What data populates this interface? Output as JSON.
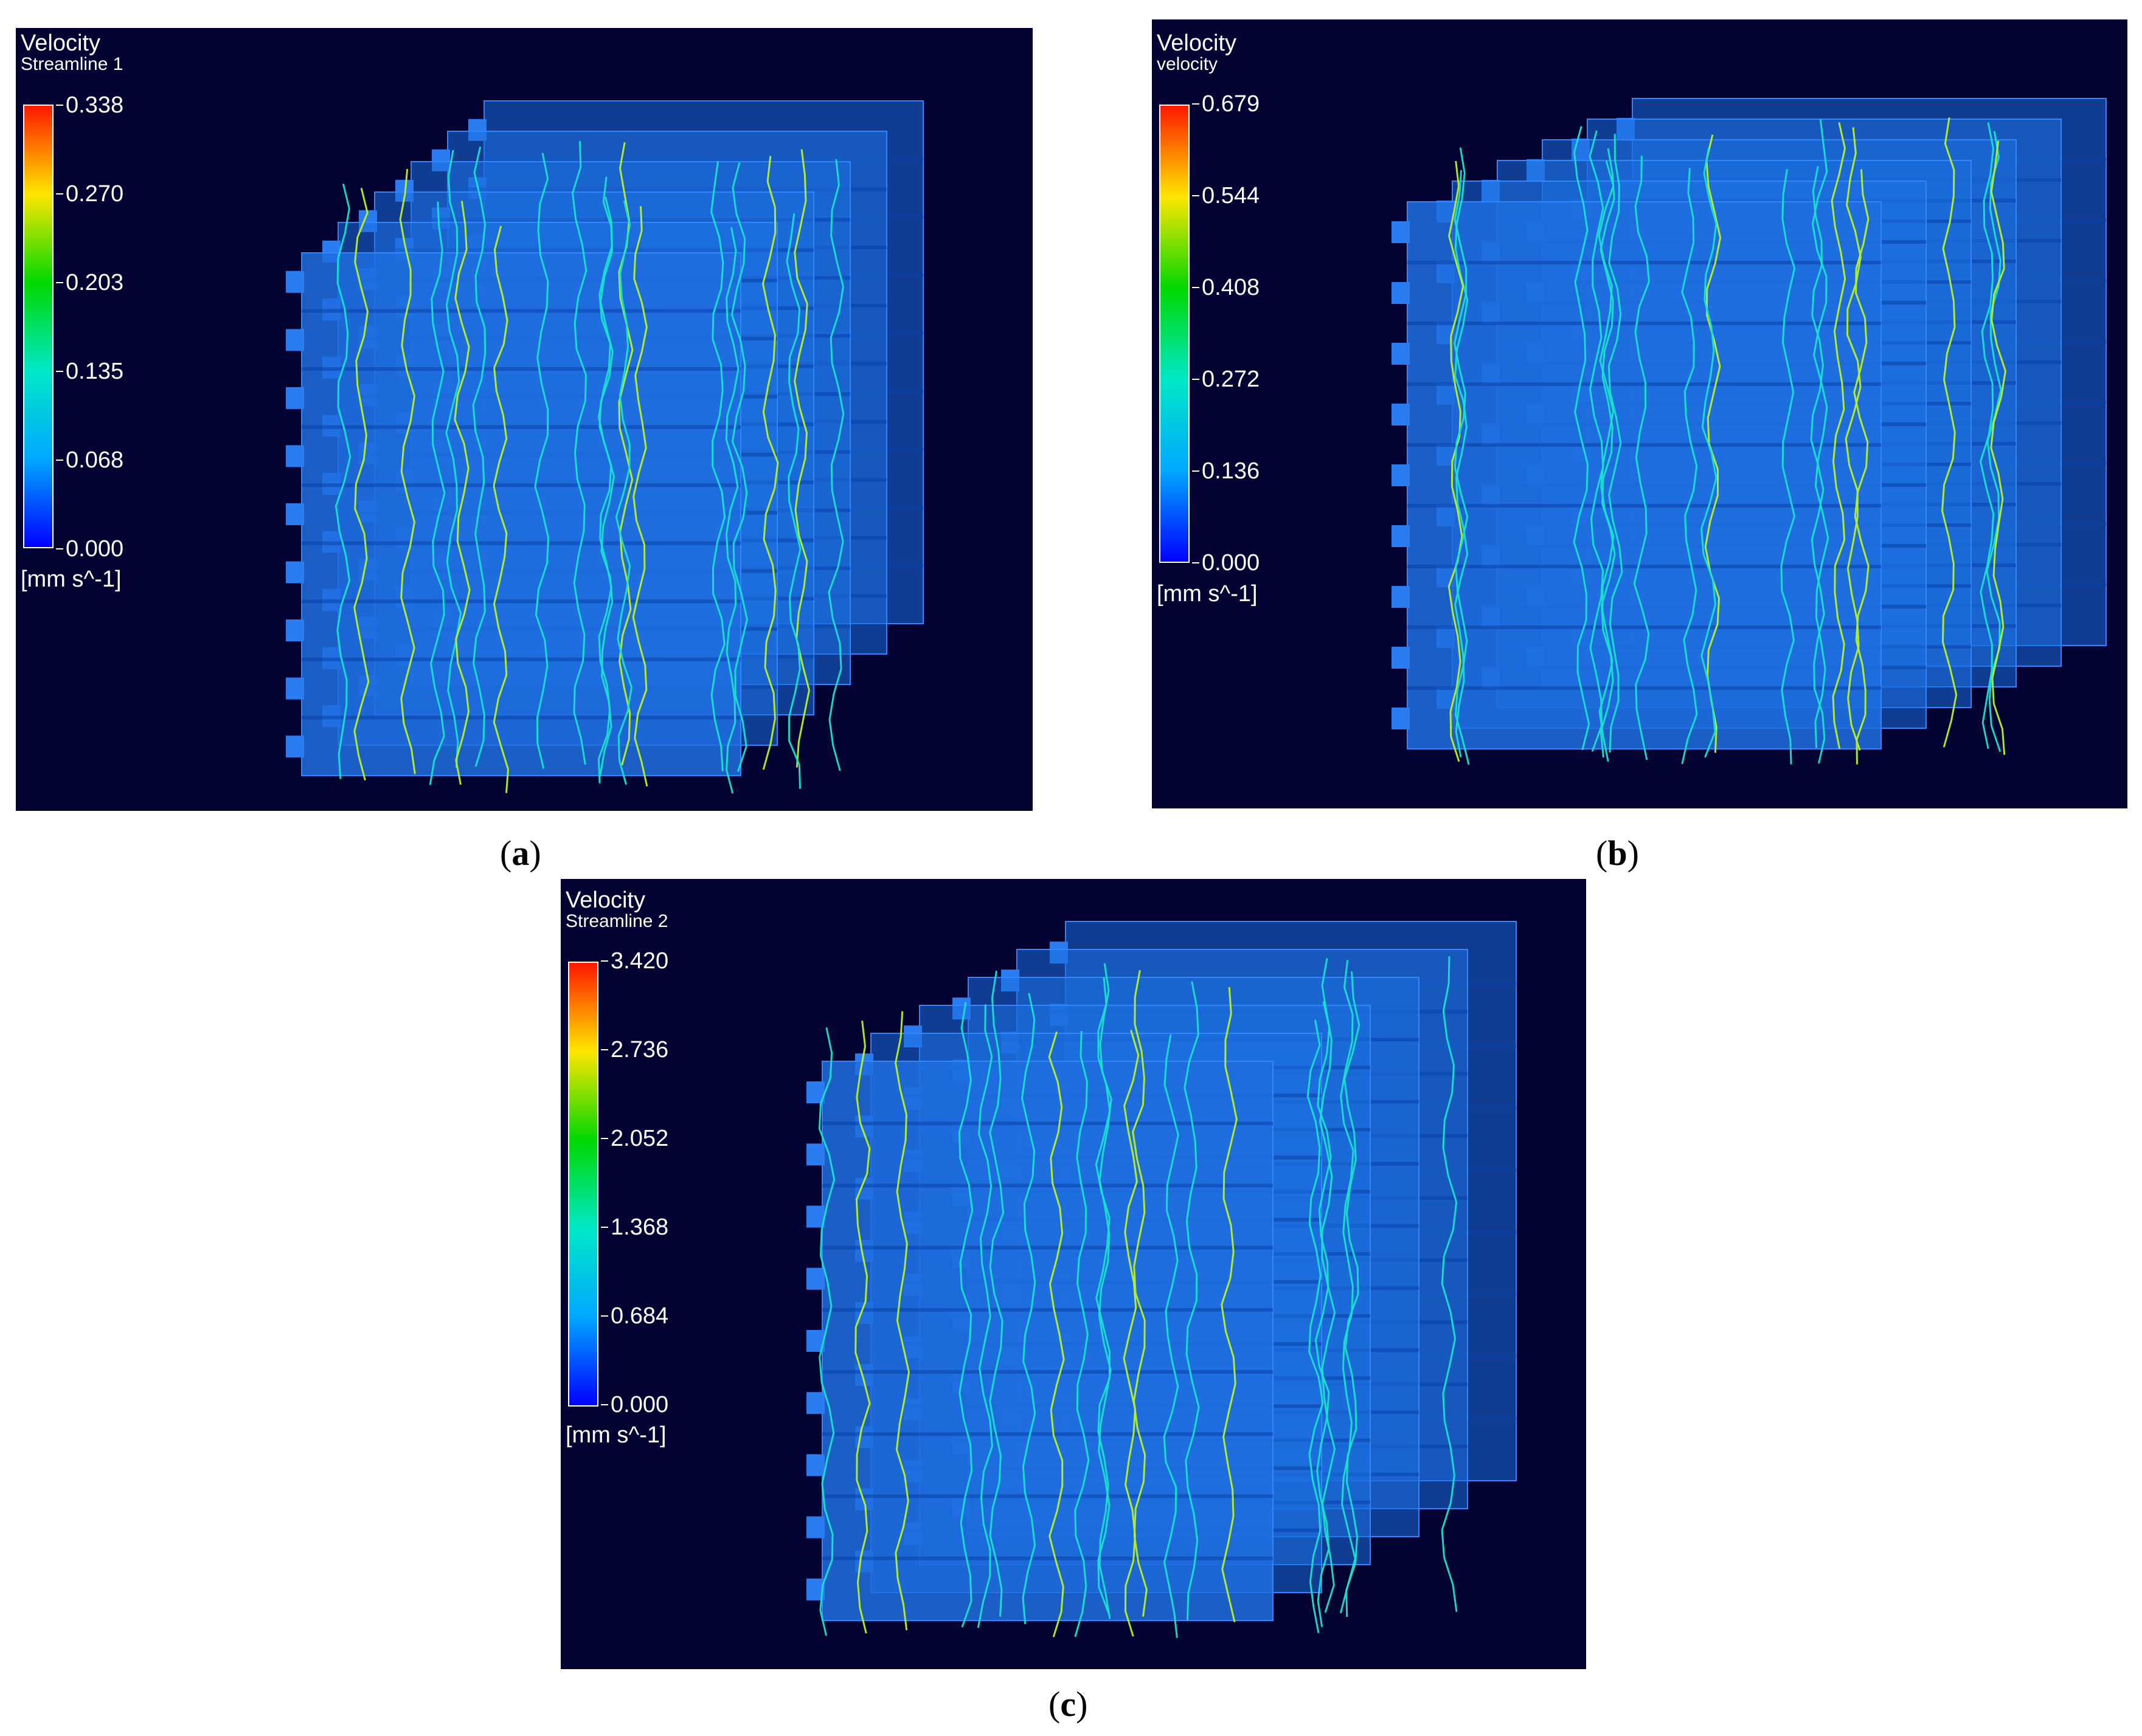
{
  "panels": [
    {
      "caption_letter": "a",
      "legend": {
        "title": "Velocity",
        "subtitle": "Streamline 1",
        "ticks": [
          "0.338",
          "0.270",
          "0.203",
          "0.135",
          "0.068",
          "0.000"
        ],
        "unit": "[mm s^-1]"
      }
    },
    {
      "caption_letter": "b",
      "legend": {
        "title": "Velocity",
        "subtitle": "velocity",
        "ticks": [
          "0.679",
          "0.544",
          "0.408",
          "0.272",
          "0.136",
          "0.000"
        ],
        "unit": "[mm s^-1]"
      }
    },
    {
      "caption_letter": "c",
      "legend": {
        "title": "Velocity",
        "subtitle": "Streamline 2",
        "ticks": [
          "3.420",
          "2.736",
          "2.052",
          "1.368",
          "0.684",
          "0.000"
        ],
        "unit": "[mm s^-1]"
      }
    }
  ],
  "colors": {
    "background": "#020233",
    "scaffold": "#1e6fe0",
    "streamline_low": "#19e0d0",
    "streamline_high": "#b8f020"
  }
}
